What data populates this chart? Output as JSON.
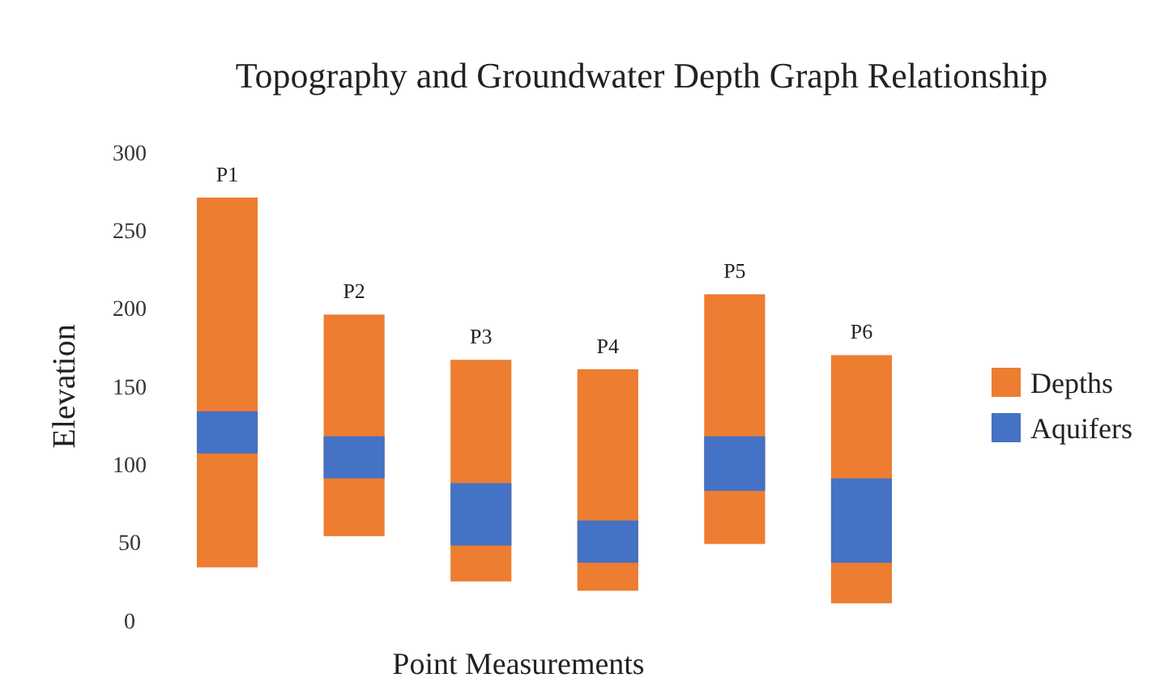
{
  "chart_data": {
    "type": "bar",
    "title": "Topography and Groundwater Depth Graph Relationship",
    "xlabel": "Point Measurements",
    "ylabel": "Elevation",
    "categories": [
      "P1",
      "P2",
      "P3",
      "P4",
      "P5",
      "P6"
    ],
    "series": [
      {
        "name": "Depths",
        "color": "#ed7d31",
        "base": [
          34,
          54,
          25,
          19,
          49,
          11
        ],
        "values": [
          237,
          142,
          142,
          142,
          160,
          159
        ]
      },
      {
        "name": "Aquifers",
        "color": "#4472c4",
        "base": [
          107,
          91,
          48,
          37,
          83,
          37
        ],
        "values": [
          27,
          27,
          40,
          27,
          35,
          54
        ]
      }
    ],
    "ylim": [
      0,
      300
    ],
    "yticks": [
      0,
      50,
      100,
      150,
      200,
      250,
      300
    ],
    "grid": false,
    "legend": "right"
  }
}
